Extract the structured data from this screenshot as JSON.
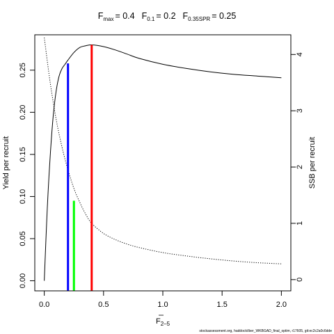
{
  "chart_data": {
    "type": "line",
    "title": {
      "parts": [
        {
          "sym": "F",
          "sub": "max",
          "val": "= 0.4"
        },
        {
          "sym": "F",
          "sub": "0.1",
          "val": "= 0.2"
        },
        {
          "sym": "F",
          "sub": "0.35SPR",
          "val": "= 0.25"
        }
      ]
    },
    "xlabel": {
      "sym": "F",
      "sub": "2–5"
    },
    "ylabel_left": "Yield per recruit",
    "ylabel_right": "SSB per recruit",
    "xlim": [
      -0.08,
      2.08
    ],
    "ylim_left": [
      -0.012,
      0.292
    ],
    "ylim_right": [
      -0.2,
      4.35
    ],
    "x_ticks": [
      "0.0",
      "0.5",
      "1.0",
      "1.5",
      "2.0"
    ],
    "x_tick_values": [
      0,
      0.5,
      1.0,
      1.5,
      2.0
    ],
    "y_ticks_left": [
      "0.00",
      "0.05",
      "0.10",
      "0.15",
      "0.20",
      "0.25"
    ],
    "y_tick_values_left": [
      0,
      0.05,
      0.1,
      0.15,
      0.2,
      0.25
    ],
    "y_ticks_right": [
      "0",
      "1",
      "2",
      "3",
      "4"
    ],
    "y_tick_values_right": [
      0,
      1,
      2,
      3,
      4
    ],
    "series": [
      {
        "axis": "left",
        "style": "solid",
        "x": [
          0,
          0.025,
          0.05,
          0.075,
          0.1,
          0.125,
          0.15,
          0.175,
          0.2,
          0.25,
          0.3,
          0.35,
          0.4,
          0.5,
          0.6,
          0.7,
          0.8,
          1.0,
          1.2,
          1.4,
          1.6,
          1.8,
          2.0
        ],
        "y": [
          0.0,
          0.085,
          0.148,
          0.195,
          0.225,
          0.243,
          0.252,
          0.257,
          0.262,
          0.271,
          0.277,
          0.279,
          0.28,
          0.278,
          0.274,
          0.269,
          0.264,
          0.257,
          0.252,
          0.248,
          0.245,
          0.243,
          0.241
        ]
      },
      {
        "axis": "right",
        "style": "dotted",
        "x": [
          0,
          0.05,
          0.1,
          0.15,
          0.2,
          0.25,
          0.3,
          0.35,
          0.4,
          0.5,
          0.6,
          0.7,
          0.8,
          1.0,
          1.2,
          1.4,
          1.6,
          1.8,
          2.0
        ],
        "y": [
          4.3,
          3.5,
          2.85,
          2.35,
          1.95,
          1.62,
          1.37,
          1.16,
          1.0,
          0.82,
          0.71,
          0.63,
          0.57,
          0.48,
          0.42,
          0.37,
          0.33,
          0.3,
          0.28
        ]
      }
    ],
    "reference_lines": [
      {
        "x": 0.2,
        "y_left": 0.258,
        "color": "#0000ff"
      },
      {
        "x": 0.25,
        "y_left": 0.095,
        "color": "#00ff00"
      },
      {
        "x": 0.4,
        "y_left": 0.28,
        "color": "#ff0000"
      }
    ],
    "footer": "stockassessment.org, haddock/iber_WKBGAD_final_optim, r17605, git:ec2c2a0c6dde"
  }
}
